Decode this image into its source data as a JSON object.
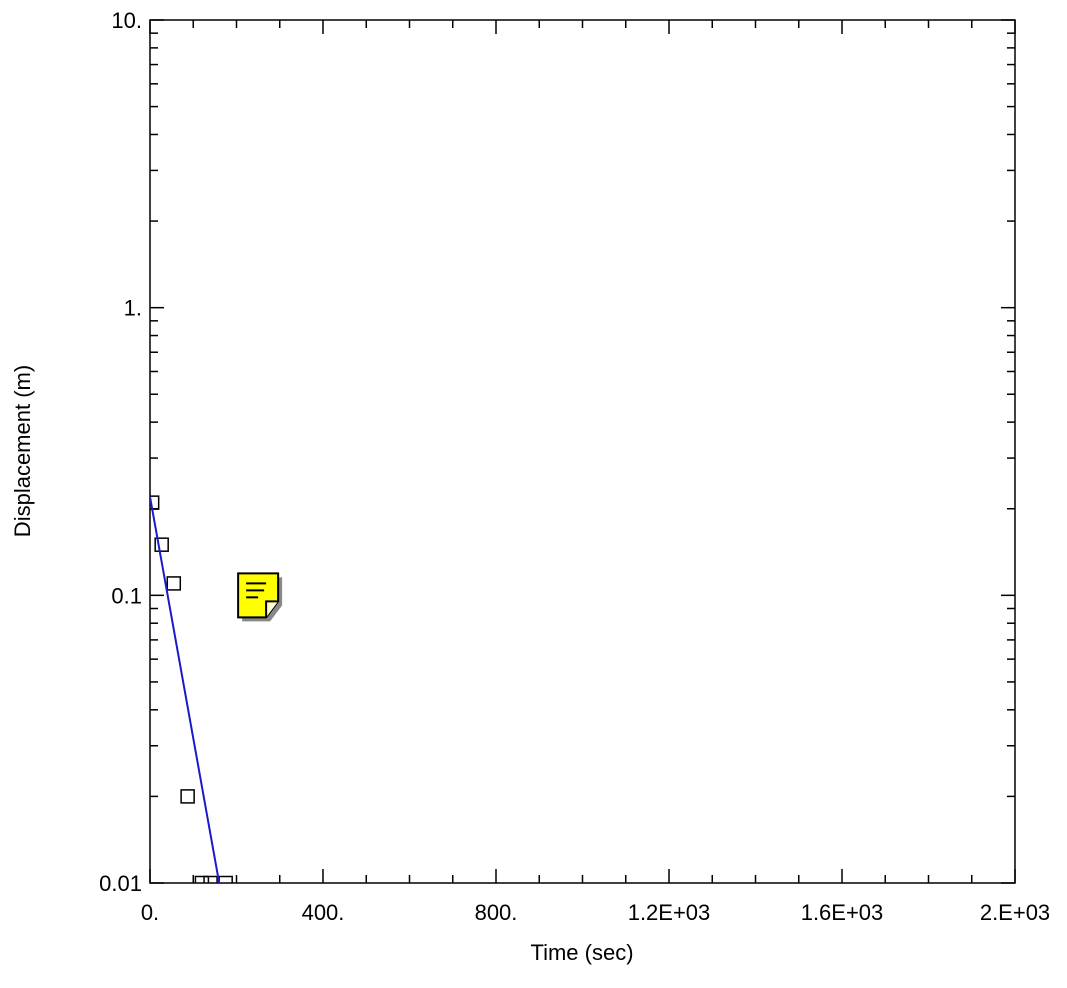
{
  "chart_data": {
    "type": "scatter",
    "xlabel": "Time (sec)",
    "ylabel": "Displacement (m)",
    "xlim": [
      0,
      2000
    ],
    "ylim": [
      0.01,
      10
    ],
    "y_scale": "log",
    "x_ticks": [
      {
        "value": 0,
        "label": "0."
      },
      {
        "value": 400,
        "label": "400."
      },
      {
        "value": 800,
        "label": "800."
      },
      {
        "value": 1200,
        "label": "1.2E+03"
      },
      {
        "value": 1600,
        "label": "1.6E+03"
      },
      {
        "value": 2000,
        "label": "2.E+03"
      }
    ],
    "y_ticks": [
      {
        "value": 0.01,
        "label": "0.01"
      },
      {
        "value": 0.1,
        "label": "0.1"
      },
      {
        "value": 1,
        "label": "1."
      },
      {
        "value": 10,
        "label": "10."
      }
    ],
    "series": [
      {
        "marker": "square",
        "color": "#000000",
        "x": [
          5,
          27,
          55,
          87,
          120,
          140,
          175
        ],
        "y": [
          0.21,
          0.15,
          0.11,
          0.02,
          0.01,
          0.01,
          0.01
        ]
      },
      {
        "line": true,
        "color": "#1a1acc",
        "x": [
          0,
          160
        ],
        "y": [
          0.22,
          0.01
        ]
      }
    ],
    "annotation_icon": {
      "name": "note-icon",
      "color": "#ffff00",
      "x": 250,
      "y": 0.1
    }
  }
}
